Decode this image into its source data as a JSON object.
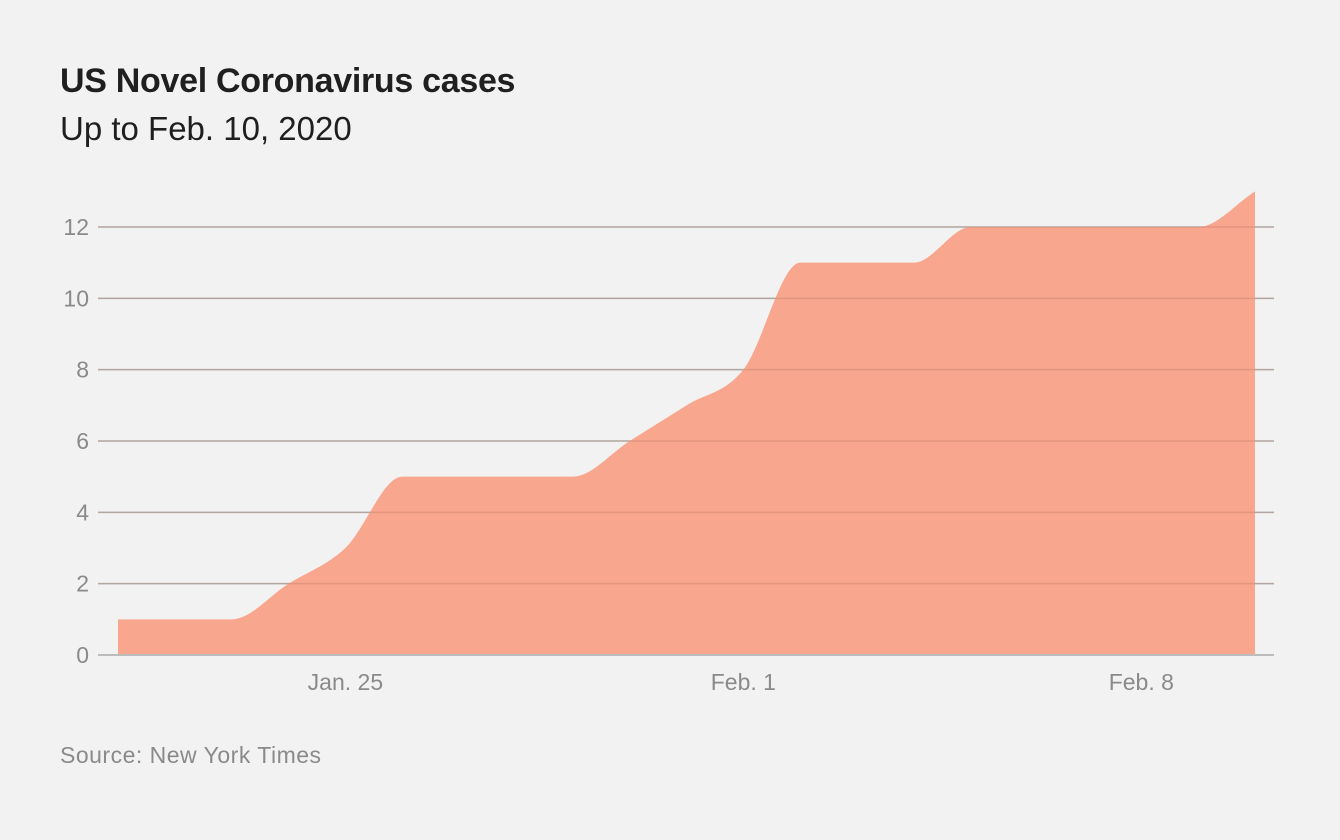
{
  "chart_data": {
    "type": "area",
    "title": "US Novel Coronavirus cases",
    "subtitle": "Up to Feb. 10, 2020",
    "x": [
      "2020-01-21",
      "2020-01-22",
      "2020-01-23",
      "2020-01-24",
      "2020-01-25",
      "2020-01-26",
      "2020-01-27",
      "2020-01-28",
      "2020-01-29",
      "2020-01-30",
      "2020-01-31",
      "2020-02-01",
      "2020-02-02",
      "2020-02-03",
      "2020-02-04",
      "2020-02-05",
      "2020-02-06",
      "2020-02-07",
      "2020-02-08",
      "2020-02-09",
      "2020-02-10"
    ],
    "series": [
      {
        "values": [
          1,
          1,
          1,
          2,
          3,
          5,
          5,
          5,
          5,
          6,
          7,
          8,
          11,
          11,
          11,
          12,
          12,
          12,
          12,
          12,
          13
        ]
      }
    ],
    "ylim": [
      0,
      13
    ],
    "yticks": [
      0,
      2,
      4,
      6,
      8,
      10,
      12
    ],
    "xticks": [
      {
        "date": "2020-01-25",
        "label": "Jan. 25"
      },
      {
        "date": "2020-02-01",
        "label": "Feb. 1"
      },
      {
        "date": "2020-02-08",
        "label": "Feb. 8"
      }
    ],
    "grid": true,
    "fill_color": "#f8a78e",
    "grid_color": "#bcbcbc",
    "source": "Source: New York Times"
  }
}
